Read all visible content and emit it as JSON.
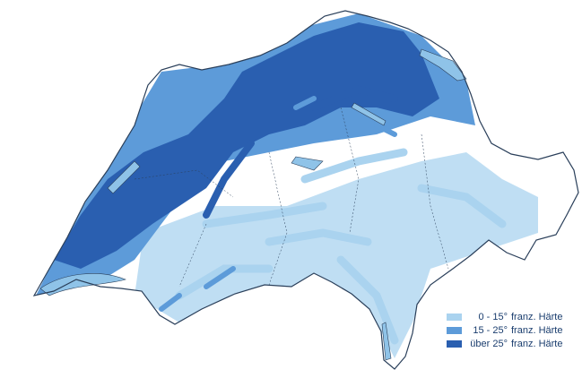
{
  "map": {
    "region": "Switzerland",
    "colors": {
      "background": "#ffffff",
      "border": "#2a3f5a",
      "water": "#8fc3e8",
      "hardness_low": "#aad3ef",
      "hardness_mid": "#5d9bd9",
      "hardness_high": "#2a5fb0"
    }
  },
  "legend": {
    "items": [
      {
        "range": "0 - 15°",
        "label": "franz. Härte",
        "color": "#aad3ef"
      },
      {
        "range": "15 - 25°",
        "label": "franz. Härte",
        "color": "#5d9bd9"
      },
      {
        "range": "über 25°",
        "label": "franz. Härte",
        "color": "#2a5fb0"
      }
    ]
  }
}
